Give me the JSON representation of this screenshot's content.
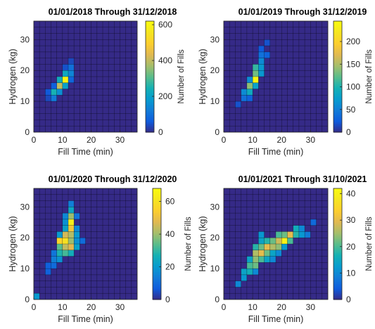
{
  "colormap": "parula",
  "cell_border_color": "#000000",
  "chart_data": [
    {
      "type": "heatmap",
      "title": "01/01/2018 Through 31/12/2018",
      "xlabel": "Fill Time (min)",
      "ylabel": "Hydrogen (kg)",
      "colorbar_label": "Number of Fills",
      "bin_width": 2,
      "xlim": [
        0,
        36
      ],
      "ylim": [
        0,
        36
      ],
      "xticks": [
        0,
        10,
        20,
        30
      ],
      "yticks": [
        0,
        10,
        20,
        30
      ],
      "clim": [
        0,
        620
      ],
      "cticks": [
        0,
        200,
        400,
        600
      ],
      "cells": [
        {
          "x": 4,
          "y": 10,
          "v": 40
        },
        {
          "x": 6,
          "y": 10,
          "v": 120
        },
        {
          "x": 6,
          "y": 12,
          "v": 250
        },
        {
          "x": 8,
          "y": 12,
          "v": 160
        },
        {
          "x": 4,
          "y": 12,
          "v": 60
        },
        {
          "x": 8,
          "y": 14,
          "v": 400
        },
        {
          "x": 10,
          "y": 14,
          "v": 200
        },
        {
          "x": 8,
          "y": 16,
          "v": 230
        },
        {
          "x": 10,
          "y": 16,
          "v": 600
        },
        {
          "x": 10,
          "y": 18,
          "v": 220
        },
        {
          "x": 12,
          "y": 18,
          "v": 140
        },
        {
          "x": 12,
          "y": 20,
          "v": 100
        },
        {
          "x": 10,
          "y": 20,
          "v": 50
        },
        {
          "x": 12,
          "y": 16,
          "v": 80
        },
        {
          "x": 6,
          "y": 14,
          "v": 70
        },
        {
          "x": 12,
          "y": 22,
          "v": 40
        }
      ]
    },
    {
      "type": "heatmap",
      "title": "01/01/2019 Through 31/12/2019",
      "xlabel": "Fill Time (min)",
      "ylabel": "Hydrogen (kg)",
      "colorbar_label": "Number of Fills",
      "bin_width": 2,
      "xlim": [
        0,
        36
      ],
      "ylim": [
        0,
        36
      ],
      "xticks": [
        0,
        10,
        20,
        30
      ],
      "yticks": [
        0,
        10,
        20,
        30
      ],
      "clim": [
        0,
        245
      ],
      "cticks": [
        0,
        50,
        100,
        150,
        200
      ],
      "cells": [
        {
          "x": 4,
          "y": 8,
          "v": 20
        },
        {
          "x": 6,
          "y": 10,
          "v": 40
        },
        {
          "x": 6,
          "y": 12,
          "v": 60
        },
        {
          "x": 8,
          "y": 10,
          "v": 30
        },
        {
          "x": 8,
          "y": 12,
          "v": 90
        },
        {
          "x": 8,
          "y": 14,
          "v": 140
        },
        {
          "x": 10,
          "y": 14,
          "v": 80
        },
        {
          "x": 10,
          "y": 16,
          "v": 240
        },
        {
          "x": 8,
          "y": 16,
          "v": 60
        },
        {
          "x": 10,
          "y": 18,
          "v": 130
        },
        {
          "x": 12,
          "y": 18,
          "v": 70
        },
        {
          "x": 10,
          "y": 20,
          "v": 110
        },
        {
          "x": 12,
          "y": 20,
          "v": 70
        },
        {
          "x": 12,
          "y": 22,
          "v": 60
        },
        {
          "x": 12,
          "y": 24,
          "v": 40
        },
        {
          "x": 14,
          "y": 24,
          "v": 30
        },
        {
          "x": 14,
          "y": 28,
          "v": 20
        },
        {
          "x": 12,
          "y": 26,
          "v": 25
        }
      ]
    },
    {
      "type": "heatmap",
      "title": "01/01/2020 Through 31/12/2020",
      "xlabel": "Fill Time (min)",
      "ylabel": "Hydrogen (kg)",
      "colorbar_label": "Number of Fills",
      "bin_width": 2,
      "xlim": [
        0,
        36
      ],
      "ylim": [
        0,
        36
      ],
      "xticks": [
        0,
        10,
        20,
        30
      ],
      "yticks": [
        0,
        10,
        20,
        30
      ],
      "clim": [
        0,
        68
      ],
      "cticks": [
        0,
        20,
        40,
        60
      ],
      "cells": [
        {
          "x": 0,
          "y": 0,
          "v": 20
        },
        {
          "x": 4,
          "y": 8,
          "v": 8
        },
        {
          "x": 6,
          "y": 10,
          "v": 10
        },
        {
          "x": 6,
          "y": 12,
          "v": 14
        },
        {
          "x": 8,
          "y": 12,
          "v": 18
        },
        {
          "x": 8,
          "y": 14,
          "v": 28
        },
        {
          "x": 10,
          "y": 14,
          "v": 32
        },
        {
          "x": 12,
          "y": 14,
          "v": 26
        },
        {
          "x": 6,
          "y": 14,
          "v": 12
        },
        {
          "x": 8,
          "y": 16,
          "v": 34
        },
        {
          "x": 10,
          "y": 16,
          "v": 44
        },
        {
          "x": 12,
          "y": 16,
          "v": 48
        },
        {
          "x": 14,
          "y": 16,
          "v": 22
        },
        {
          "x": 8,
          "y": 18,
          "v": 56
        },
        {
          "x": 10,
          "y": 18,
          "v": 60
        },
        {
          "x": 12,
          "y": 18,
          "v": 40
        },
        {
          "x": 14,
          "y": 18,
          "v": 18
        },
        {
          "x": 10,
          "y": 20,
          "v": 46
        },
        {
          "x": 12,
          "y": 20,
          "v": 42
        },
        {
          "x": 8,
          "y": 20,
          "v": 20
        },
        {
          "x": 12,
          "y": 22,
          "v": 52
        },
        {
          "x": 10,
          "y": 22,
          "v": 22
        },
        {
          "x": 14,
          "y": 22,
          "v": 16
        },
        {
          "x": 12,
          "y": 24,
          "v": 64
        },
        {
          "x": 10,
          "y": 24,
          "v": 18
        },
        {
          "x": 12,
          "y": 26,
          "v": 40
        },
        {
          "x": 10,
          "y": 26,
          "v": 16
        },
        {
          "x": 12,
          "y": 28,
          "v": 24
        },
        {
          "x": 14,
          "y": 26,
          "v": 12
        },
        {
          "x": 12,
          "y": 30,
          "v": 14
        },
        {
          "x": 14,
          "y": 20,
          "v": 20
        },
        {
          "x": 16,
          "y": 18,
          "v": 10
        },
        {
          "x": 4,
          "y": 10,
          "v": 8
        }
      ]
    },
    {
      "type": "heatmap",
      "title": "01/01/2021 Through 31/10/2021",
      "xlabel": "Fill Time (min)",
      "ylabel": "Hydrogen (kg)",
      "colorbar_label": "Number of Fills",
      "bin_width": 2,
      "xlim": [
        0,
        36
      ],
      "ylim": [
        0,
        36
      ],
      "xticks": [
        0,
        10,
        20,
        30
      ],
      "yticks": [
        0,
        10,
        20,
        30
      ],
      "clim": [
        0,
        42
      ],
      "cticks": [
        0,
        10,
        20,
        30,
        40
      ],
      "cells": [
        {
          "x": 4,
          "y": 4,
          "v": 10
        },
        {
          "x": 6,
          "y": 6,
          "v": 12
        },
        {
          "x": 6,
          "y": 8,
          "v": 14
        },
        {
          "x": 8,
          "y": 8,
          "v": 16
        },
        {
          "x": 8,
          "y": 10,
          "v": 20
        },
        {
          "x": 10,
          "y": 10,
          "v": 22
        },
        {
          "x": 10,
          "y": 12,
          "v": 24
        },
        {
          "x": 12,
          "y": 12,
          "v": 20
        },
        {
          "x": 8,
          "y": 12,
          "v": 14
        },
        {
          "x": 10,
          "y": 14,
          "v": 26
        },
        {
          "x": 12,
          "y": 14,
          "v": 30
        },
        {
          "x": 14,
          "y": 14,
          "v": 22
        },
        {
          "x": 16,
          "y": 14,
          "v": 14
        },
        {
          "x": 10,
          "y": 16,
          "v": 18
        },
        {
          "x": 12,
          "y": 16,
          "v": 22
        },
        {
          "x": 14,
          "y": 16,
          "v": 30
        },
        {
          "x": 16,
          "y": 16,
          "v": 26
        },
        {
          "x": 18,
          "y": 16,
          "v": 24
        },
        {
          "x": 12,
          "y": 18,
          "v": 14
        },
        {
          "x": 14,
          "y": 18,
          "v": 18
        },
        {
          "x": 16,
          "y": 18,
          "v": 22
        },
        {
          "x": 18,
          "y": 18,
          "v": 28
        },
        {
          "x": 20,
          "y": 18,
          "v": 40
        },
        {
          "x": 22,
          "y": 18,
          "v": 20
        },
        {
          "x": 18,
          "y": 20,
          "v": 20
        },
        {
          "x": 20,
          "y": 20,
          "v": 22
        },
        {
          "x": 22,
          "y": 20,
          "v": 30
        },
        {
          "x": 24,
          "y": 20,
          "v": 18
        },
        {
          "x": 24,
          "y": 22,
          "v": 16
        },
        {
          "x": 26,
          "y": 22,
          "v": 10
        },
        {
          "x": 14,
          "y": 12,
          "v": 14
        },
        {
          "x": 12,
          "y": 20,
          "v": 12
        },
        {
          "x": 16,
          "y": 12,
          "v": 10
        },
        {
          "x": 26,
          "y": 20,
          "v": 12
        },
        {
          "x": 28,
          "y": 20,
          "v": 8
        },
        {
          "x": 18,
          "y": 14,
          "v": 10
        },
        {
          "x": 20,
          "y": 16,
          "v": 12
        },
        {
          "x": 10,
          "y": 8,
          "v": 10
        },
        {
          "x": 30,
          "y": 24,
          "v": 6
        }
      ]
    }
  ]
}
